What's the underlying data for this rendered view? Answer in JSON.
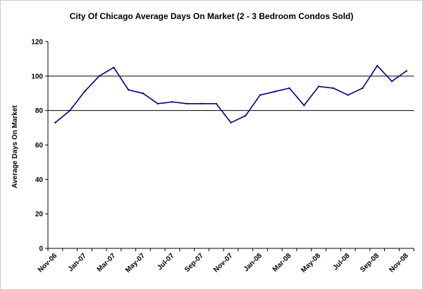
{
  "chart_data": {
    "type": "line",
    "title": "City Of Chicago Average Days On Market (2 - 3 Bedroom Condos Sold)",
    "ylabel": "Average Days On Market",
    "xlabel": "",
    "ylim": [
      0,
      120
    ],
    "yticks": [
      "0",
      "20",
      "40",
      "60",
      "80",
      "100",
      "120"
    ],
    "x_tick_labels": [
      "Nov-06",
      "Jan-07",
      "Mar-07",
      "May-07",
      "Jul-07",
      "Sep-07",
      "Nov-07",
      "Jan-08",
      "Mar-08",
      "May-08",
      "Jul-08",
      "Sep-08",
      "Nov-08"
    ],
    "x": [
      "Nov-06",
      "Dec-06",
      "Jan-07",
      "Feb-07",
      "Mar-07",
      "Apr-07",
      "May-07",
      "Jun-07",
      "Jul-07",
      "Aug-07",
      "Sep-07",
      "Oct-07",
      "Nov-07",
      "Dec-07",
      "Jan-08",
      "Feb-08",
      "Mar-08",
      "Apr-08",
      "May-08",
      "Jun-08",
      "Jul-08",
      "Aug-08",
      "Sep-08",
      "Oct-08",
      "Nov-08"
    ],
    "series": [
      {
        "values": [
          73,
          80,
          91,
          100,
          105,
          92,
          90,
          84,
          85,
          84,
          84,
          84,
          73,
          77,
          89,
          91,
          93,
          83,
          94,
          93,
          89,
          93,
          106,
          97,
          103
        ]
      }
    ],
    "grid": "horizontal major lines at 80 and 100",
    "legend": "none",
    "line_color": "#000080"
  }
}
